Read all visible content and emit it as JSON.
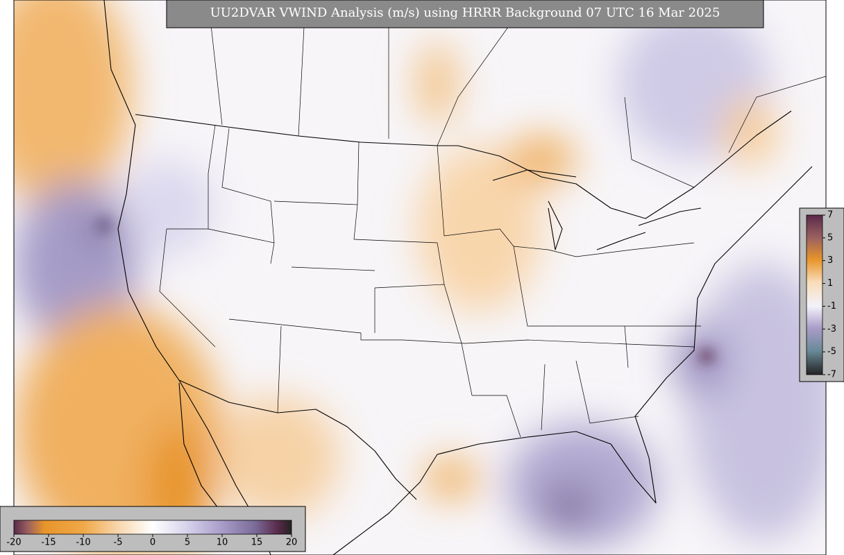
{
  "title": "UU2DVAR VWIND Analysis (m/s) using HRRR Background 07 UTC 16 Mar 2025",
  "colorbars": {
    "bottom": {
      "ticks": [
        -20,
        -15,
        -10,
        -5,
        0,
        5,
        10,
        15,
        20
      ]
    },
    "right": {
      "ticks": [
        7,
        5,
        3,
        1,
        -1,
        -3,
        -5,
        -7
      ]
    }
  }
}
